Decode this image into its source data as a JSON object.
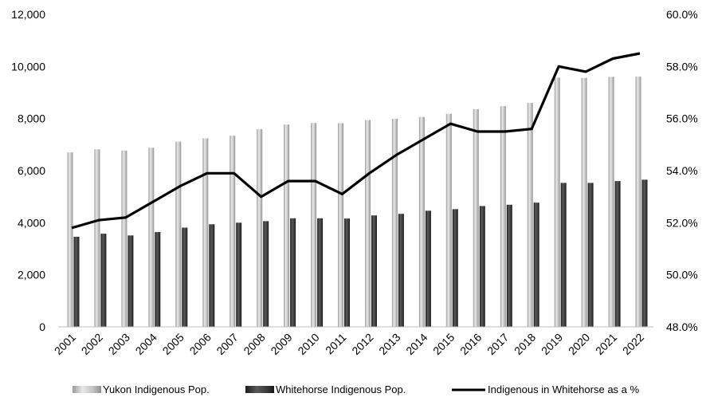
{
  "chart_data": {
    "type": "bar",
    "title": "",
    "xlabel": "",
    "ylabel": "",
    "categories": [
      "2001",
      "2002",
      "2003",
      "2004",
      "2005",
      "2006",
      "2007",
      "2008",
      "2009",
      "2010",
      "2011",
      "2012",
      "2013",
      "2014",
      "2015",
      "2016",
      "2017",
      "2018",
      "2019",
      "2020",
      "2021",
      "2022"
    ],
    "series": [
      {
        "name": "Yukon Indigenous Pop.",
        "kind": "bar",
        "axis": "left",
        "color": "#c8c8c8",
        "values": [
          6700,
          6820,
          6770,
          6880,
          7110,
          7240,
          7340,
          7590,
          7770,
          7830,
          7820,
          7940,
          7990,
          8060,
          8180,
          8360,
          8480,
          8600,
          9570,
          9560,
          9600,
          9610
        ]
      },
      {
        "name": "Whitehorse Indigenous Pop.",
        "kind": "bar",
        "axis": "left",
        "color": "#3a3a3a",
        "values": [
          3460,
          3580,
          3510,
          3640,
          3810,
          3940,
          4000,
          4060,
          4170,
          4170,
          4160,
          4280,
          4340,
          4460,
          4520,
          4640,
          4690,
          4770,
          5530,
          5530,
          5600,
          5650
        ]
      },
      {
        "name": "Indigenous in Whitehorse as a %",
        "kind": "line",
        "axis": "right",
        "color": "#000000",
        "values": [
          51.8,
          52.1,
          52.2,
          52.8,
          53.4,
          53.9,
          53.9,
          53.0,
          53.6,
          53.6,
          53.1,
          53.9,
          54.6,
          55.2,
          55.8,
          55.5,
          55.5,
          55.6,
          58.0,
          57.8,
          58.3,
          58.5
        ]
      }
    ],
    "y_left": {
      "range": [
        0,
        12000
      ],
      "ticks": [
        "0",
        "2,000",
        "4,000",
        "6,000",
        "8,000",
        "10,000",
        "12,000"
      ],
      "tick_values": [
        0,
        2000,
        4000,
        6000,
        8000,
        10000,
        12000
      ]
    },
    "y_right": {
      "range": [
        48,
        60
      ],
      "ticks": [
        "48.0%",
        "50.0%",
        "52.0%",
        "54.0%",
        "56.0%",
        "58.0%",
        "60.0%"
      ],
      "tick_values": [
        48,
        50,
        52,
        54,
        56,
        58,
        60
      ]
    },
    "grid": false,
    "legend_position": "bottom"
  }
}
